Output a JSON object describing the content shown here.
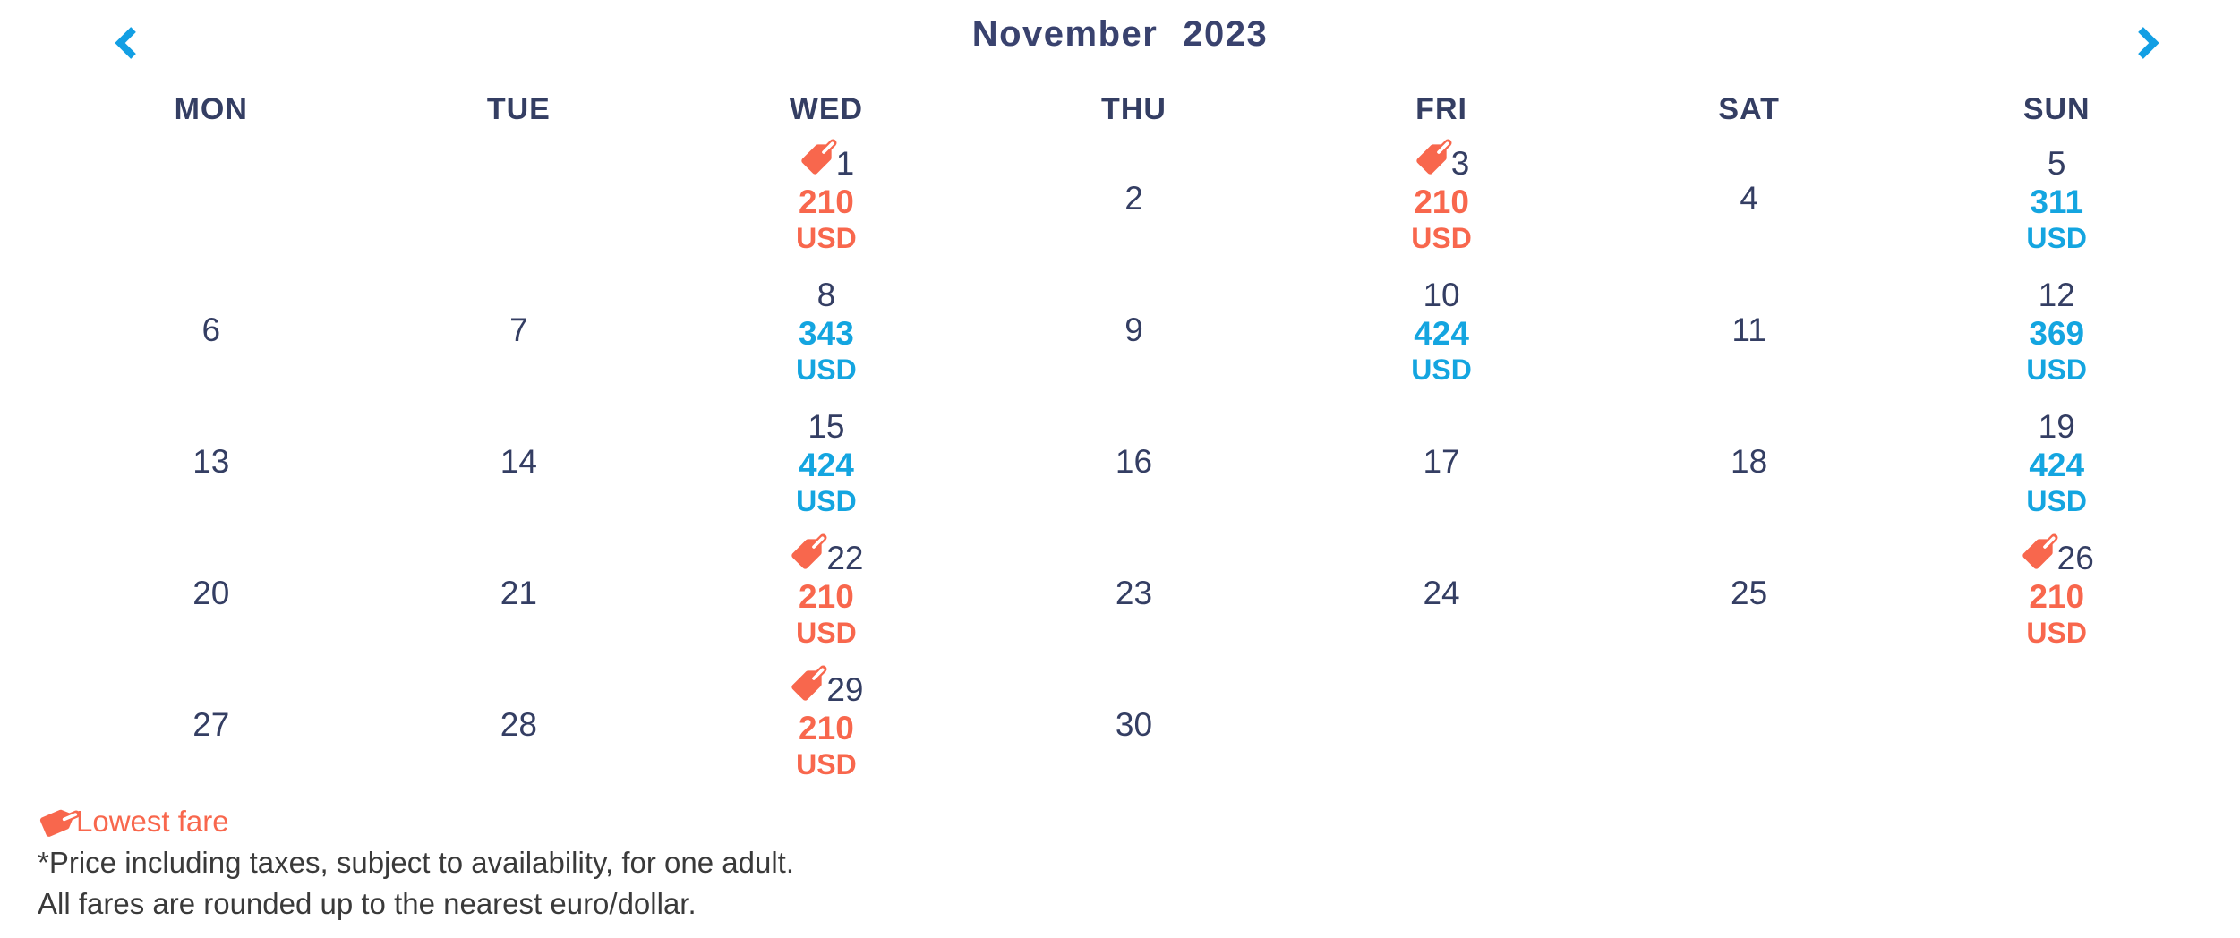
{
  "page": {
    "title_month": "November",
    "title_year": "2023"
  },
  "nav": {
    "prev_label": "previous month",
    "next_label": "next month"
  },
  "calendar": {
    "day_headers": [
      "MON",
      "TUE",
      "WED",
      "THU",
      "FRI",
      "SAT",
      "SUN"
    ],
    "weeks": [
      [
        null,
        null,
        {
          "date": "1",
          "fare": "210",
          "currency": "USD",
          "lowest": true
        },
        {
          "date": "2"
        },
        {
          "date": "3",
          "fare": "210",
          "currency": "USD",
          "lowest": true
        },
        {
          "date": "4"
        },
        {
          "date": "5",
          "fare": "311",
          "currency": "USD",
          "lowest": false
        }
      ],
      [
        {
          "date": "6"
        },
        {
          "date": "7"
        },
        {
          "date": "8",
          "fare": "343",
          "currency": "USD",
          "lowest": false
        },
        {
          "date": "9"
        },
        {
          "date": "10",
          "fare": "424",
          "currency": "USD",
          "lowest": false
        },
        {
          "date": "11"
        },
        {
          "date": "12",
          "fare": "369",
          "currency": "USD",
          "lowest": false
        }
      ],
      [
        {
          "date": "13"
        },
        {
          "date": "14"
        },
        {
          "date": "15",
          "fare": "424",
          "currency": "USD",
          "lowest": false
        },
        {
          "date": "16"
        },
        {
          "date": "17"
        },
        {
          "date": "18"
        },
        {
          "date": "19",
          "fare": "424",
          "currency": "USD",
          "lowest": false
        }
      ],
      [
        {
          "date": "20"
        },
        {
          "date": "21"
        },
        {
          "date": "22",
          "fare": "210",
          "currency": "USD",
          "lowest": true
        },
        {
          "date": "23"
        },
        {
          "date": "24"
        },
        {
          "date": "25"
        },
        {
          "date": "26",
          "fare": "210",
          "currency": "USD",
          "lowest": true
        }
      ],
      [
        {
          "date": "27"
        },
        {
          "date": "28"
        },
        {
          "date": "29",
          "fare": "210",
          "currency": "USD",
          "lowest": true
        },
        {
          "date": "30"
        },
        null,
        null,
        null
      ]
    ]
  },
  "legend": {
    "lowest_fare_label": "Lowest fare"
  },
  "footnotes": [
    "*Price including taxes, subject to availability, for one adult.",
    "All fares are rounded up to the nearest euro/dollar."
  ],
  "colors": {
    "navy": "#343E63",
    "title_navy": "#39426E",
    "fare_blue": "#14A5E0",
    "lowest_coral": "#F8674D",
    "nav_blue": "#129FE4",
    "footnote_gray": "#3A3A3A"
  }
}
